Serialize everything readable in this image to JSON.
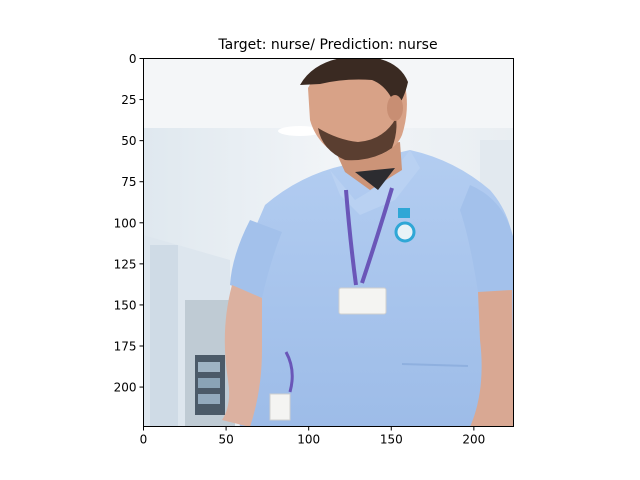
{
  "figure": {
    "title": "Target: nurse/ Prediction: nurse",
    "background": "#ffffff"
  },
  "image": {
    "subject": "man in light blue nurse scrubs with lanyard and name badge, hospital corridor",
    "colors": {
      "wall": "#eef2f5",
      "ceiling": "#f5f7f9",
      "scrubs": "#a9c6ee",
      "scrubs_shadow": "#8fb0df",
      "skin": "#d9a58a",
      "hair": "#3a2a22",
      "lanyard": "#6a56b8",
      "badge": "#f4f4f2",
      "door": "#b9c6cf"
    },
    "width": 224,
    "height": 224
  },
  "chart_data": {
    "type": "image",
    "title": "Target: nurse/ Prediction: nurse",
    "xlim": [
      0,
      224
    ],
    "ylim": [
      224,
      0
    ],
    "xticks": [
      0,
      50,
      100,
      150,
      200
    ],
    "yticks": [
      0,
      25,
      50,
      75,
      100,
      125,
      150,
      175,
      200
    ],
    "xtick_labels": [
      "0",
      "50",
      "100",
      "150",
      "200"
    ],
    "ytick_labels": [
      "0",
      "25",
      "50",
      "75",
      "100",
      "125",
      "150",
      "175",
      "200"
    ]
  }
}
